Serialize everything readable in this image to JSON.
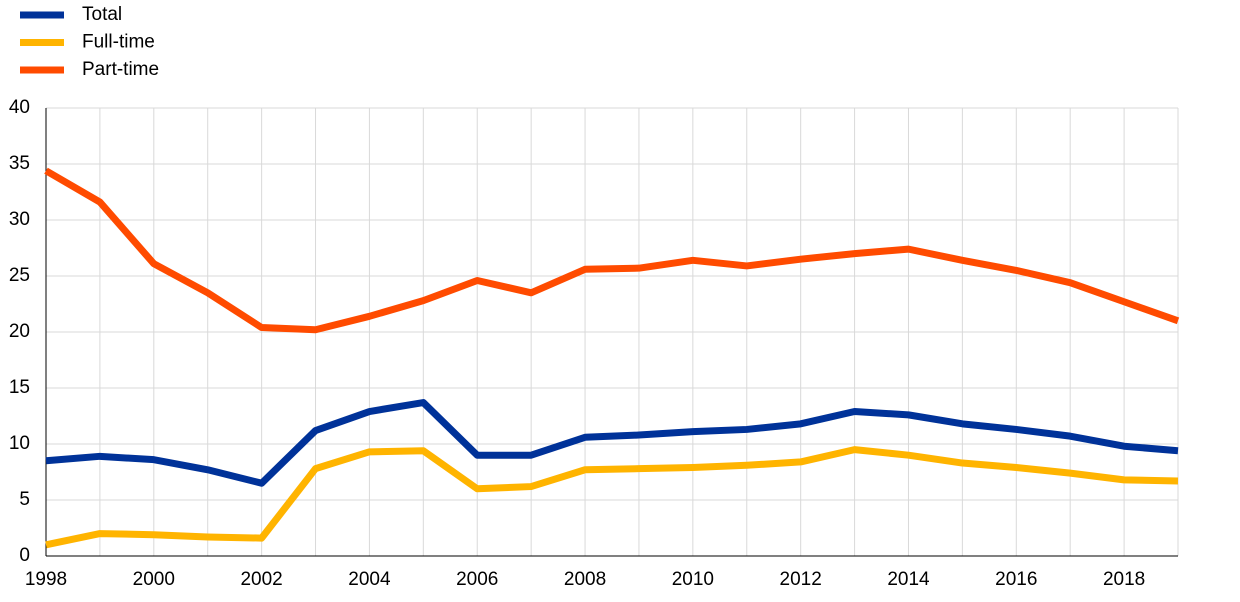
{
  "chart_data": {
    "type": "line",
    "x": [
      1998,
      1999,
      2000,
      2001,
      2002,
      2003,
      2004,
      2005,
      2006,
      2007,
      2008,
      2009,
      2010,
      2011,
      2012,
      2013,
      2014,
      2015,
      2016,
      2017,
      2018,
      2019
    ],
    "series": [
      {
        "name": "Total",
        "color": "#003299",
        "values": [
          8.5,
          8.9,
          8.6,
          7.7,
          6.5,
          11.2,
          12.9,
          13.7,
          9.0,
          9.0,
          10.6,
          10.8,
          11.1,
          11.3,
          11.8,
          12.9,
          12.6,
          11.8,
          11.3,
          10.7,
          9.8,
          9.4
        ]
      },
      {
        "name": "Full-time",
        "color": "#ffb400",
        "values": [
          1.0,
          2.0,
          1.9,
          1.7,
          1.6,
          7.8,
          9.3,
          9.4,
          6.0,
          6.2,
          7.7,
          7.8,
          7.9,
          8.1,
          8.4,
          9.5,
          9.0,
          8.3,
          7.9,
          7.4,
          6.8,
          6.7
        ]
      },
      {
        "name": "Part-time",
        "color": "#ff4b00",
        "values": [
          34.4,
          31.6,
          26.1,
          23.5,
          20.4,
          20.2,
          21.4,
          22.8,
          24.6,
          23.5,
          25.6,
          25.7,
          26.4,
          25.9,
          26.5,
          27.0,
          27.4,
          26.4,
          25.5,
          24.4,
          22.7,
          21.0
        ]
      }
    ],
    "xlim": [
      1998,
      2019
    ],
    "xticks": [
      1998,
      2000,
      2002,
      2004,
      2006,
      2008,
      2010,
      2012,
      2014,
      2016,
      2018
    ],
    "xgrid": [
      1998,
      1999,
      2000,
      2001,
      2002,
      2003,
      2004,
      2005,
      2006,
      2007,
      2008,
      2009,
      2010,
      2011,
      2012,
      2013,
      2014,
      2015,
      2016,
      2017,
      2018,
      2019
    ],
    "ylim": [
      0,
      40
    ],
    "yticks": [
      0,
      5,
      10,
      15,
      20,
      25,
      30,
      35,
      40
    ],
    "grid": true,
    "legend": "top-left"
  }
}
